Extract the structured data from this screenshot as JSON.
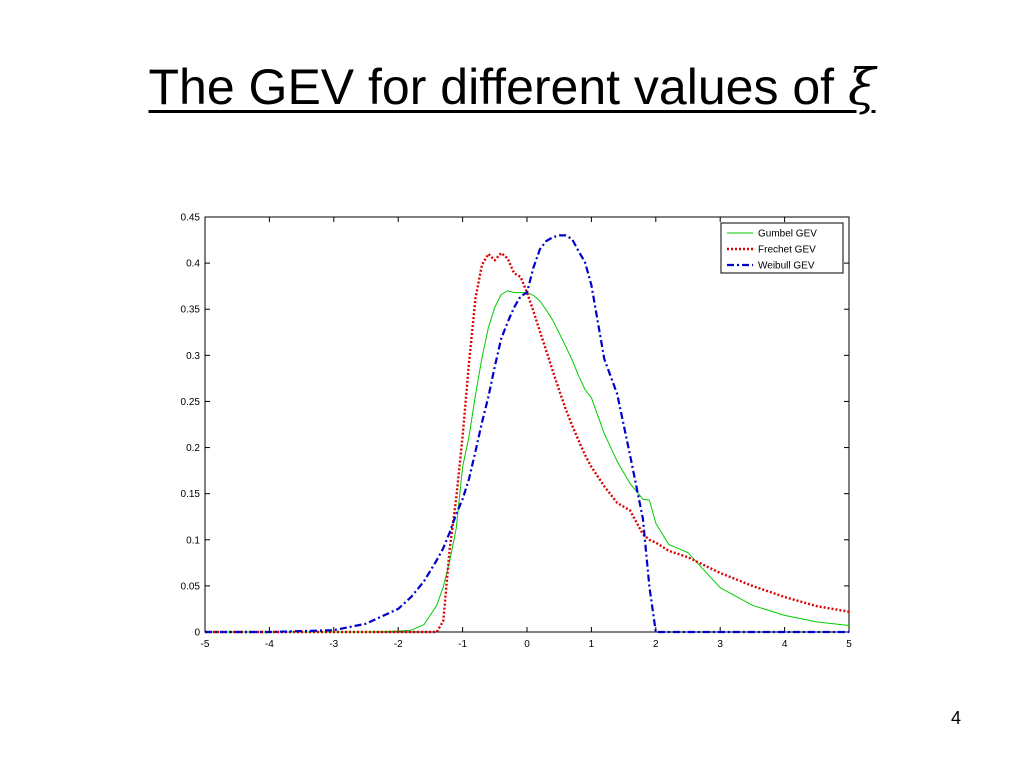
{
  "slide": {
    "title_text": "The GEV for different values of ",
    "title_symbol": "ξ",
    "page_number": "4"
  },
  "chart_data": {
    "type": "line",
    "title": "",
    "xlabel": "",
    "ylabel": "",
    "xlim": [
      -5,
      5
    ],
    "ylim": [
      0,
      0.45
    ],
    "xticks": [
      -5,
      -4,
      -3,
      -2,
      -1,
      0,
      1,
      2,
      3,
      4,
      5
    ],
    "xtick_labels": [
      "-5",
      "-4",
      "-3",
      "-2",
      "-1",
      "0",
      "1",
      "2",
      "3",
      "4",
      "5"
    ],
    "yticks": [
      0,
      0.05,
      0.1,
      0.15,
      0.2,
      0.25,
      0.3,
      0.35,
      0.4,
      0.45
    ],
    "ytick_labels": [
      "0",
      "0.05",
      "0.1",
      "0.15",
      "0.2",
      "0.25",
      "0.3",
      "0.35",
      "0.4",
      "0.45"
    ],
    "grid": false,
    "legend_position": "top-right",
    "x": [
      -5,
      -4.5,
      -4,
      -3.5,
      -3,
      -2.5,
      -2,
      -1.8,
      -1.6,
      -1.4,
      -1.3,
      -1.2,
      -1.1,
      -1,
      -0.9,
      -0.8,
      -0.7,
      -0.6,
      -0.5,
      -0.4,
      -0.3,
      -0.2,
      -0.1,
      0,
      0.1,
      0.2,
      0.3,
      0.4,
      0.5,
      0.6,
      0.7,
      0.8,
      0.9,
      1,
      1.2,
      1.4,
      1.6,
      1.8,
      1.9,
      2,
      2.2,
      2.5,
      3,
      3.5,
      4,
      4.5,
      5
    ],
    "series": [
      {
        "name": "Gumbel GEV",
        "color": "#00cc00",
        "dash": "solid",
        "values": [
          0,
          0,
          0,
          0,
          0,
          0,
          0.001,
          0.002,
          0.008,
          0.029,
          0.049,
          0.077,
          0.112,
          0.179,
          0.212,
          0.257,
          0.297,
          0.33,
          0.352,
          0.366,
          0.37,
          0.368,
          0.368,
          0.368,
          0.365,
          0.359,
          0.349,
          0.338,
          0.324,
          0.31,
          0.295,
          0.278,
          0.263,
          0.254,
          0.215,
          0.185,
          0.161,
          0.144,
          0.143,
          0.118,
          0.095,
          0.086,
          0.048,
          0.029,
          0.018,
          0.011,
          0.007
        ]
      },
      {
        "name": "Frechet GEV",
        "color": "#dd0000",
        "dash": "dotted",
        "values": [
          0,
          0,
          0,
          0,
          0,
          0,
          0,
          0,
          0,
          0,
          0.012,
          0.09,
          0.145,
          0.212,
          0.292,
          0.362,
          0.398,
          0.41,
          0.403,
          0.411,
          0.405,
          0.389,
          0.385,
          0.368,
          0.348,
          0.326,
          0.305,
          0.283,
          0.262,
          0.242,
          0.224,
          0.208,
          0.192,
          0.179,
          0.158,
          0.14,
          0.132,
          0.106,
          0.1,
          0.097,
          0.088,
          0.081,
          0.064,
          0.05,
          0.038,
          0.028,
          0.022
        ]
      },
      {
        "name": "Weibull GEV",
        "color": "#0000cc",
        "dash": "dashdot",
        "values": [
          0,
          0,
          0,
          0.001,
          0.002,
          0.009,
          0.025,
          0.038,
          0.055,
          0.078,
          0.091,
          0.108,
          0.128,
          0.144,
          0.166,
          0.196,
          0.227,
          0.255,
          0.288,
          0.318,
          0.336,
          0.352,
          0.364,
          0.368,
          0.395,
          0.415,
          0.424,
          0.428,
          0.43,
          0.43,
          0.426,
          0.413,
          0.401,
          0.376,
          0.296,
          0.258,
          0.192,
          0.123,
          0.049,
          0,
          0,
          0,
          0,
          0,
          0,
          0,
          0
        ]
      }
    ]
  }
}
